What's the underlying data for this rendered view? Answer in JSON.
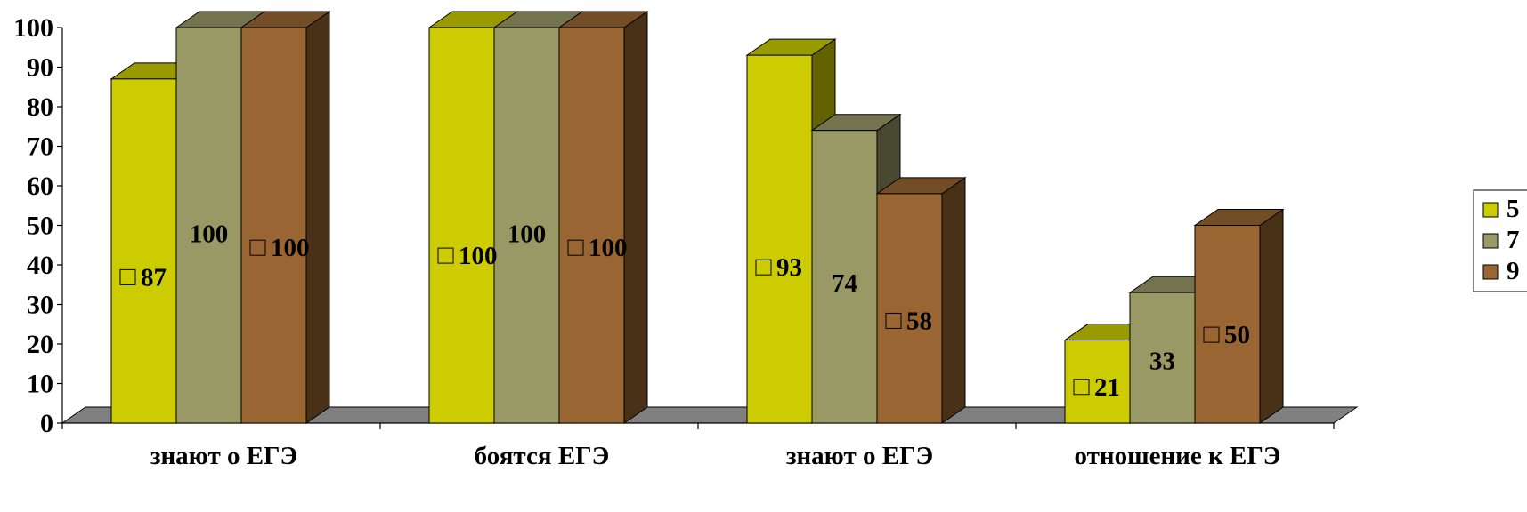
{
  "chart_data": {
    "type": "bar",
    "style": "3d-clustered-column",
    "title": "",
    "xlabel": "",
    "ylabel": "",
    "categories": [
      "знают о ЕГЭ",
      "боятся ЕГЭ",
      "знают о ЕГЭ",
      "отношение к ЕГЭ"
    ],
    "series": [
      {
        "name": "5",
        "values": [
          87,
          100,
          93,
          21
        ],
        "color": "#cccc00"
      },
      {
        "name": "7",
        "values": [
          100,
          100,
          74,
          33
        ],
        "color": "#999966"
      },
      {
        "name": "9",
        "values": [
          100,
          100,
          58,
          50
        ],
        "color": "#996633"
      }
    ],
    "ylim": [
      0,
      100
    ],
    "yticks": [
      0,
      10,
      20,
      30,
      40,
      50,
      60,
      70,
      80,
      90,
      100
    ],
    "grid": false,
    "legend_position": "right",
    "data_labels": true,
    "floor_color": "#808080"
  }
}
